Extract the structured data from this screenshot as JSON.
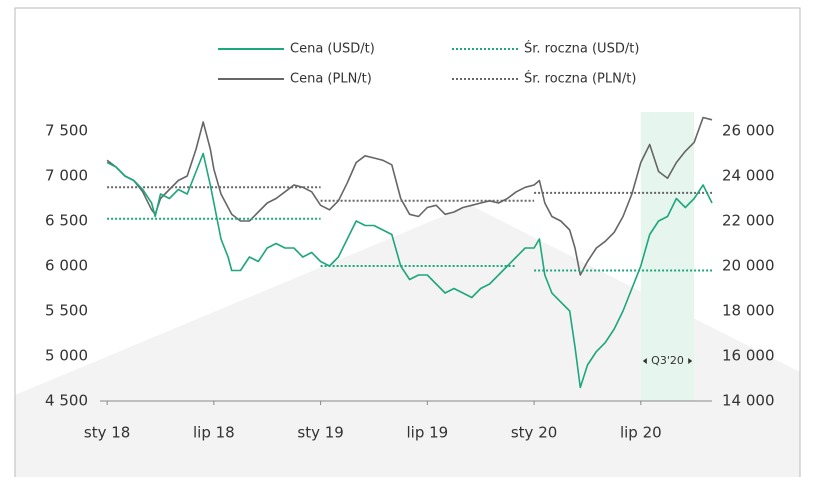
{
  "chart_data": {
    "type": "line",
    "xlim": [
      -0.4,
      34
    ],
    "xticks": [
      {
        "value": 0,
        "label": "sty 18"
      },
      {
        "value": 6,
        "label": "lip 18"
      },
      {
        "value": 12,
        "label": "sty 19"
      },
      {
        "value": 18,
        "label": "lip 19"
      },
      {
        "value": 24,
        "label": "sty 20"
      },
      {
        "value": 30,
        "label": "lip 20"
      }
    ],
    "ylim": [
      4500,
      7500
    ],
    "yticks": [
      {
        "value": 4500,
        "label": "4 500"
      },
      {
        "value": 5000,
        "label": "5 000"
      },
      {
        "value": 5500,
        "label": "5 500"
      },
      {
        "value": 6000,
        "label": "6 000"
      },
      {
        "value": 6500,
        "label": "6 500"
      },
      {
        "value": 7000,
        "label": "7 000"
      },
      {
        "value": 7500,
        "label": "7 500"
      }
    ],
    "y2lim": [
      14000,
      26000
    ],
    "y2ticks": [
      {
        "value": 14000,
        "label": "14 000"
      },
      {
        "value": 16000,
        "label": "16 000"
      },
      {
        "value": 18000,
        "label": "18 000"
      },
      {
        "value": 20000,
        "label": "20 000"
      },
      {
        "value": 22000,
        "label": "22 000"
      },
      {
        "value": 24000,
        "label": "24 000"
      },
      {
        "value": 26000,
        "label": "26 000"
      }
    ],
    "grid": false,
    "annotations": [
      {
        "text": "Q3'20",
        "x0": 30,
        "x1": 33,
        "color": "#e6f6ef"
      }
    ],
    "series": [
      {
        "name": "Cena (USD/t)",
        "color": "#1ea67c",
        "style": "solid",
        "axis": "y",
        "x": [
          0,
          0.5,
          1,
          1.5,
          2,
          2.5,
          2.7,
          3,
          3.5,
          4,
          4.5,
          5,
          5.4,
          5.8,
          6,
          6.4,
          6.8,
          7,
          7.5,
          8,
          8.5,
          9,
          9.5,
          10,
          10.5,
          11,
          11.5,
          12,
          12.5,
          13,
          13.5,
          14,
          14.5,
          15,
          15.5,
          16,
          16.5,
          17,
          17.5,
          18,
          18.5,
          19,
          19.5,
          20,
          20.5,
          21,
          21.5,
          22,
          22.5,
          23,
          23.5,
          24,
          24.3,
          24.6,
          25,
          25.5,
          26,
          26.3,
          26.6,
          27,
          27.5,
          28,
          28.5,
          29,
          29.5,
          30,
          30.5,
          31,
          31.5,
          32,
          32.5,
          33,
          33.5,
          34
        ],
        "values": [
          7150,
          7100,
          7000,
          6950,
          6850,
          6700,
          6550,
          6800,
          6750,
          6850,
          6800,
          7050,
          7250,
          6900,
          6700,
          6300,
          6100,
          5950,
          5950,
          6100,
          6050,
          6200,
          6250,
          6200,
          6200,
          6100,
          6150,
          6050,
          6000,
          6100,
          6300,
          6500,
          6450,
          6450,
          6400,
          6350,
          6000,
          5850,
          5900,
          5900,
          5800,
          5700,
          5750,
          5700,
          5650,
          5750,
          5800,
          5900,
          6000,
          6100,
          6200,
          6200,
          6300,
          5900,
          5700,
          5600,
          5500,
          5100,
          4650,
          4900,
          5050,
          5150,
          5300,
          5500,
          5750,
          6000,
          6350,
          6500,
          6550,
          6750,
          6650,
          6750,
          6900,
          6700
        ]
      },
      {
        "name": "Śr. roczna (USD/t)",
        "color": "#1ea67c",
        "style": "dotted",
        "axis": "y",
        "x": [
          0,
          12,
          12,
          12,
          23,
          23,
          24,
          34
        ],
        "values": [
          6525,
          6525,
          null,
          6000,
          6000,
          null,
          5950,
          5950
        ]
      },
      {
        "name": "Cena (PLN/t)",
        "color": "#666666",
        "style": "solid",
        "axis": "y2",
        "x": [
          0,
          0.5,
          1,
          1.5,
          2,
          2.5,
          2.7,
          3,
          3.5,
          4,
          4.5,
          5,
          5.4,
          5.8,
          6,
          6.4,
          6.8,
          7,
          7.5,
          8,
          8.5,
          9,
          9.5,
          10,
          10.5,
          11,
          11.5,
          12,
          12.5,
          13,
          13.5,
          14,
          14.5,
          15,
          15.5,
          16,
          16.5,
          17,
          17.5,
          18,
          18.5,
          19,
          19.5,
          20,
          20.5,
          21,
          21.5,
          22,
          22.5,
          23,
          23.5,
          24,
          24.3,
          24.6,
          25,
          25.5,
          26,
          26.3,
          26.6,
          27,
          27.5,
          28,
          28.5,
          29,
          29.5,
          30,
          30.5,
          31,
          31.5,
          32,
          32.5,
          33,
          33.5,
          34
        ],
        "values": [
          24700,
          24400,
          24000,
          23800,
          23300,
          22500,
          22300,
          23000,
          23400,
          23800,
          24000,
          25200,
          26400,
          25200,
          24300,
          23200,
          22600,
          22300,
          22000,
          22000,
          22400,
          22800,
          23000,
          23300,
          23600,
          23500,
          23300,
          22700,
          22500,
          22900,
          23700,
          24600,
          24900,
          24800,
          24700,
          24500,
          23000,
          22300,
          22200,
          22600,
          22700,
          22300,
          22400,
          22600,
          22700,
          22800,
          22900,
          22800,
          23000,
          23300,
          23500,
          23600,
          23800,
          22800,
          22200,
          22000,
          21600,
          20800,
          19600,
          20200,
          20800,
          21100,
          21500,
          22200,
          23200,
          24600,
          25400,
          24200,
          23900,
          24600,
          25100,
          25500,
          26600,
          26500
        ]
      },
      {
        "name": "Śr. roczna (PLN/t)",
        "color": "#666666",
        "style": "dotted",
        "axis": "y2",
        "x": [
          0,
          12,
          12,
          12,
          24,
          24,
          24,
          34
        ],
        "values": [
          23500,
          23500,
          null,
          22900,
          22900,
          null,
          23250,
          23250
        ]
      }
    ]
  }
}
